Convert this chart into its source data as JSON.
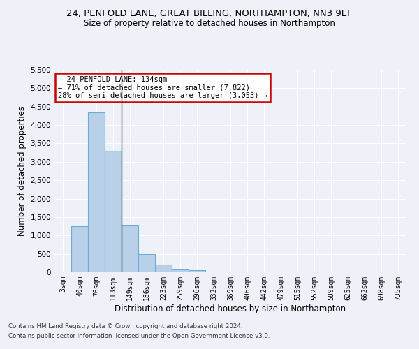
{
  "title1": "24, PENFOLD LANE, GREAT BILLING, NORTHAMPTON, NN3 9EF",
  "title2": "Size of property relative to detached houses in Northampton",
  "xlabel": "Distribution of detached houses by size in Northampton",
  "ylabel": "Number of detached properties",
  "footer1": "Contains HM Land Registry data © Crown copyright and database right 2024.",
  "footer2": "Contains public sector information licensed under the Open Government Licence v3.0.",
  "annotation_line1": "  24 PENFOLD LANE: 134sqm  ",
  "annotation_line2": "← 71% of detached houses are smaller (7,822)",
  "annotation_line3": "28% of semi-detached houses are larger (3,053) →",
  "bar_categories": [
    "3sqm",
    "40sqm",
    "76sqm",
    "113sqm",
    "149sqm",
    "186sqm",
    "223sqm",
    "259sqm",
    "296sqm",
    "332sqm",
    "369sqm",
    "406sqm",
    "442sqm",
    "479sqm",
    "515sqm",
    "552sqm",
    "589sqm",
    "625sqm",
    "662sqm",
    "698sqm",
    "735sqm"
  ],
  "bar_values": [
    0,
    1260,
    4340,
    3300,
    1280,
    490,
    210,
    85,
    60,
    0,
    0,
    0,
    0,
    0,
    0,
    0,
    0,
    0,
    0,
    0,
    0
  ],
  "bar_color": "#b8d0e8",
  "bar_edge_color": "#6aadd5",
  "property_bin_index": 3.5,
  "ylim": [
    0,
    5500
  ],
  "yticks": [
    0,
    500,
    1000,
    1500,
    2000,
    2500,
    3000,
    3500,
    4000,
    4500,
    5000,
    5500
  ],
  "bg_color": "#eef2f8",
  "annotation_box_color": "#cc0000",
  "annotation_fill": "#ffffff",
  "grid_color": "#ffffff"
}
